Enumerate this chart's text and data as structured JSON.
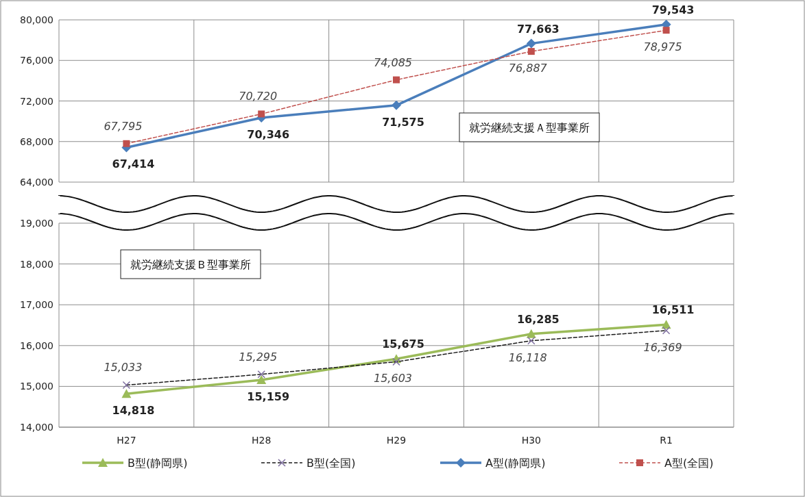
{
  "chart_data": [
    {
      "type": "line",
      "categories": [
        "H27",
        "H28",
        "H29",
        "H30",
        "R1"
      ],
      "ylim": [
        64000,
        80000
      ],
      "yticks": [
        {
          "value": 64000,
          "label": "64,000"
        },
        {
          "value": 68000,
          "label": "68,000"
        },
        {
          "value": 72000,
          "label": "72,000"
        },
        {
          "value": 76000,
          "label": "76,000"
        },
        {
          "value": 80000,
          "label": "80,000"
        }
      ],
      "tick_labels": "y",
      "grid": true,
      "legend": "bottom",
      "annotations": [
        "就労継続支援Ａ型事業所"
      ],
      "series": [
        {
          "name": "A型(静岡県)",
          "color": "#4a7ebb",
          "marker": "diamond",
          "line_style": "solid",
          "values": [
            67414,
            70346,
            71575,
            77663,
            79543
          ],
          "value_labels": [
            "67,414",
            "70,346",
            "71,575",
            "77,663",
            "79,543"
          ]
        },
        {
          "name": "A型(全国)",
          "color": "#c0504d",
          "marker": "square",
          "line_style": "dashed",
          "values": [
            67795,
            70720,
            74085,
            76887,
            78975
          ],
          "value_labels": [
            "67,795",
            "70,720",
            "74,085",
            "76,887",
            "78,975"
          ]
        }
      ]
    },
    {
      "type": "line",
      "categories": [
        "H27",
        "H28",
        "H29",
        "H30",
        "R1"
      ],
      "ylim": [
        14000,
        19000
      ],
      "yticks": [
        {
          "value": 14000,
          "label": "14,000"
        },
        {
          "value": 15000,
          "label": "15,000"
        },
        {
          "value": 16000,
          "label": "16,000"
        },
        {
          "value": 17000,
          "label": "17,000"
        },
        {
          "value": 18000,
          "label": "18,000"
        },
        {
          "value": 19000,
          "label": "19,000"
        }
      ],
      "grid": true,
      "legend": "bottom",
      "annotations": [
        "就労継続支援Ｂ型事業所"
      ],
      "series": [
        {
          "name": "B型(静岡県)",
          "color": "#9bbb59",
          "marker": "triangle",
          "line_style": "solid",
          "values": [
            14818,
            15159,
            15675,
            16285,
            16511
          ],
          "value_labels": [
            "14,818",
            "15,159",
            "15,675",
            "16,285",
            "16,511"
          ]
        },
        {
          "name": "B型(全国)",
          "color": "#1a1a1a",
          "marker": "cross",
          "line_style": "dashed",
          "values": [
            15033,
            15295,
            15603,
            16118,
            16369
          ],
          "value_labels": [
            "15,033",
            "15,295",
            "15,603",
            "16,118",
            "16,369"
          ]
        }
      ]
    }
  ]
}
